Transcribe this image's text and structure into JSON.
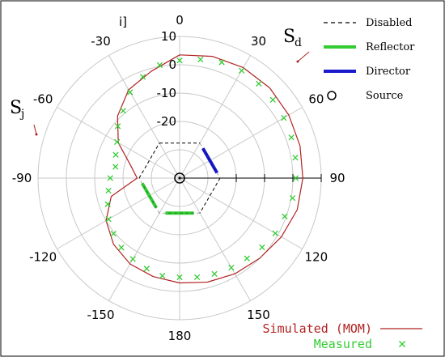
{
  "chart_data": {
    "type": "polar",
    "angle_unit": "degrees",
    "angle_zero": "top",
    "angle_direction": "clockwise",
    "radial_axis": {
      "range": [
        -40,
        10
      ],
      "ticks": [
        10,
        0,
        -10,
        -20
      ],
      "tick_labels": [
        "10",
        "0",
        "-10",
        "-20"
      ],
      "unit_label": "i]"
    },
    "angle_ticks": [
      0,
      30,
      60,
      90,
      120,
      150,
      180,
      -150,
      -120,
      -90,
      -60,
      -30
    ],
    "angle_tick_labels": [
      "0",
      "30",
      "60",
      "90",
      "120",
      "150",
      "180",
      "-150",
      "-120",
      "-90",
      "-60",
      "-30"
    ],
    "grid": true,
    "series": [
      {
        "name": "Simulated (MOM)",
        "style": "line",
        "color": "#b22222",
        "angles": [
          0,
          15,
          30,
          45,
          60,
          75,
          90,
          105,
          120,
          135,
          150,
          165,
          180,
          195,
          210,
          225,
          240,
          255,
          270,
          285,
          300,
          315,
          330,
          345,
          360
        ],
        "values": [
          3.5,
          4.5,
          5.0,
          5.0,
          4.5,
          4.0,
          3.5,
          3.0,
          1.5,
          0.0,
          -1.0,
          -2.0,
          -3.0,
          -4.0,
          -5.0,
          -7.0,
          -10.0,
          -15.0,
          -25.0,
          -22.0,
          -15.0,
          -9.0,
          -4.0,
          -1.0,
          3.5
        ]
      },
      {
        "name": "Measured",
        "style": "markers",
        "marker": "x",
        "color": "#33cc33",
        "angles": [
          0,
          10,
          20,
          30,
          40,
          50,
          60,
          70,
          80,
          90,
          100,
          110,
          120,
          130,
          140,
          150,
          160,
          170,
          180,
          190,
          200,
          210,
          220,
          230,
          240,
          250,
          260,
          270,
          280,
          290,
          300,
          310,
          320,
          330,
          340,
          350
        ],
        "values": [
          1.5,
          2.5,
          3.5,
          3.8,
          3.5,
          3.0,
          2.5,
          2.0,
          1.5,
          1.0,
          0.5,
          -0.5,
          -1.0,
          -2.0,
          -3.0,
          -3.5,
          -4.0,
          -4.5,
          -5.0,
          -5.0,
          -6.0,
          -7.0,
          -8.0,
          -9.5,
          -11.0,
          -13.0,
          -14.5,
          -15.5,
          -17.0,
          -16.0,
          -14.5,
          -11.5,
          -9.0,
          -5.0,
          -2.0,
          0.5
        ]
      }
    ],
    "legend_top_right": [
      {
        "label": "Disabled",
        "symbol": "dashed-line",
        "color": "#000000"
      },
      {
        "label": "Reflector",
        "symbol": "thick-line",
        "color": "#33cc33"
      },
      {
        "label": "Director",
        "symbol": "thick-line",
        "color": "#1a1acc"
      },
      {
        "label": "Source",
        "symbol": "circle",
        "color": "#000000"
      }
    ],
    "legend_bottom": [
      {
        "label": "Simulated (MOM)",
        "symbol": "line",
        "color": "#b22222"
      },
      {
        "label": "Measured",
        "symbol": "x",
        "color": "#33cc33"
      }
    ],
    "annotations": [
      {
        "id": "sd",
        "text": "S",
        "subscript": "d"
      },
      {
        "id": "sj",
        "text": "S",
        "subscript": "j"
      }
    ],
    "array_elements": [
      {
        "role": "Director",
        "state": "active",
        "color": "#1a1acc"
      },
      {
        "role": "Reflector",
        "state": "active",
        "color": "#33cc33"
      },
      {
        "role": "Reflector",
        "state": "active",
        "color": "#33cc33"
      },
      {
        "role": "Disabled",
        "state": "disabled",
        "color": "#000000"
      }
    ]
  }
}
